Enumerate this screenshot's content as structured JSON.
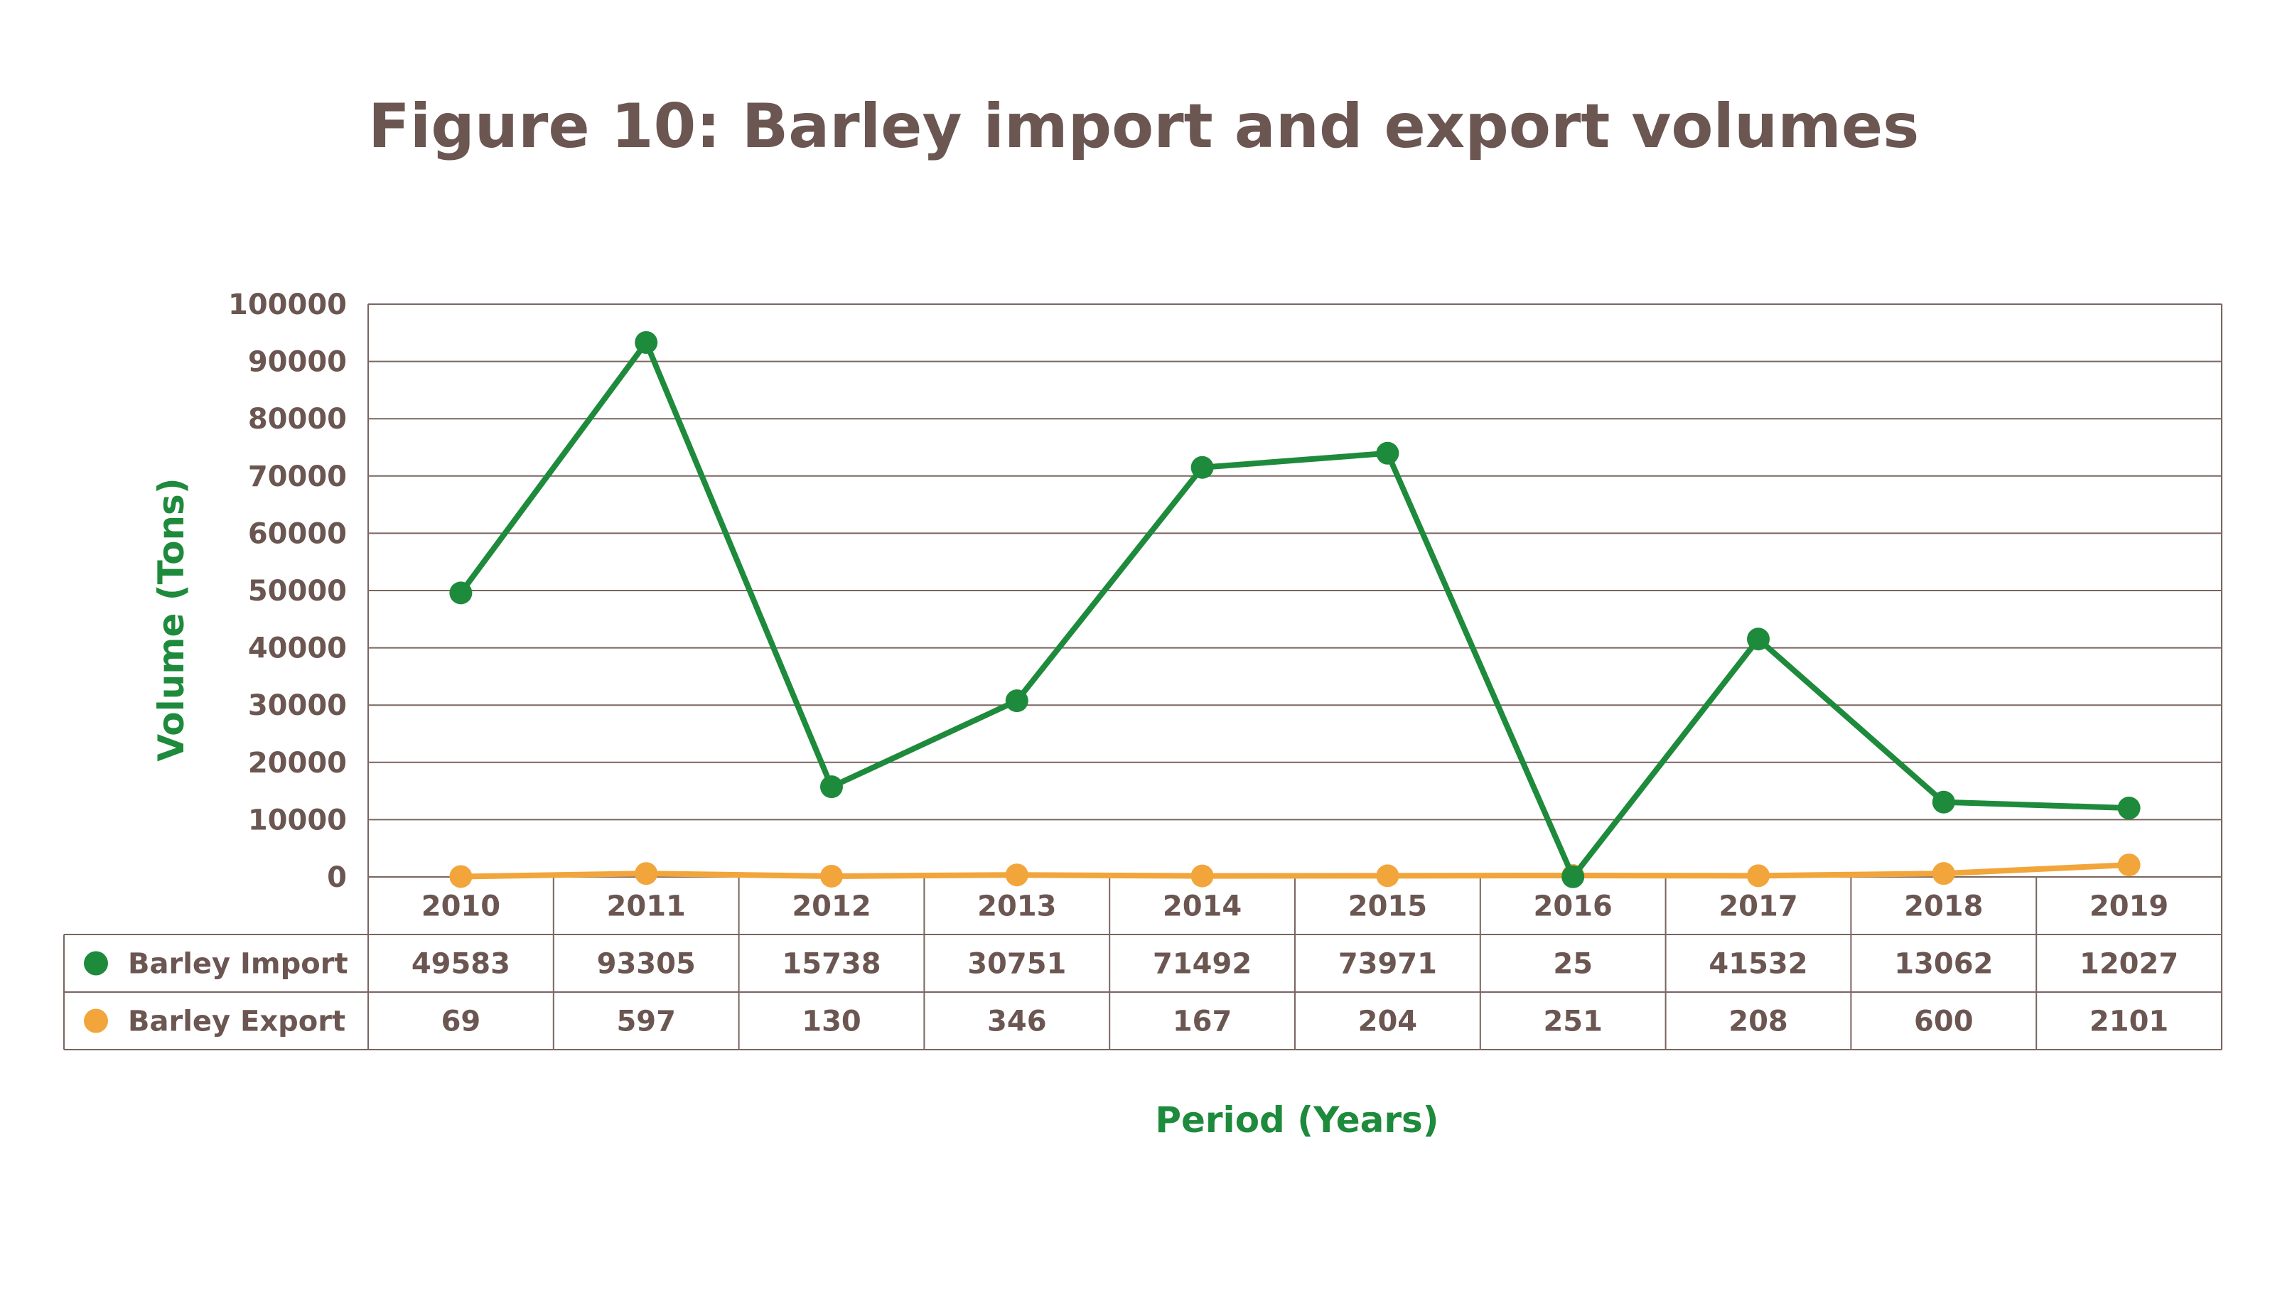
{
  "chart_data": {
    "type": "line",
    "title": "Figure 10: Barley import and export volumes",
    "xlabel": "Period (Years)",
    "ylabel": "Volume (Tons)",
    "categories": [
      "2010",
      "2011",
      "2012",
      "2013",
      "2014",
      "2015",
      "2016",
      "2017",
      "2018",
      "2019"
    ],
    "ylim": [
      0,
      100000
    ],
    "yticks": [
      "0",
      "10000",
      "20000",
      "30000",
      "40000",
      "50000",
      "60000",
      "70000",
      "80000",
      "90000",
      "100000"
    ],
    "grid": true,
    "legend": "data-table",
    "series": [
      {
        "name": "Barley Import",
        "color": "#1e8a3c",
        "values": [
          49583,
          93305,
          15738,
          30751,
          71492,
          73971,
          25,
          41532,
          13062,
          12027
        ]
      },
      {
        "name": "Barley Export",
        "color": "#f2a53a",
        "values": [
          69,
          597,
          130,
          346,
          167,
          204,
          251,
          208,
          600,
          2101
        ]
      }
    ]
  }
}
